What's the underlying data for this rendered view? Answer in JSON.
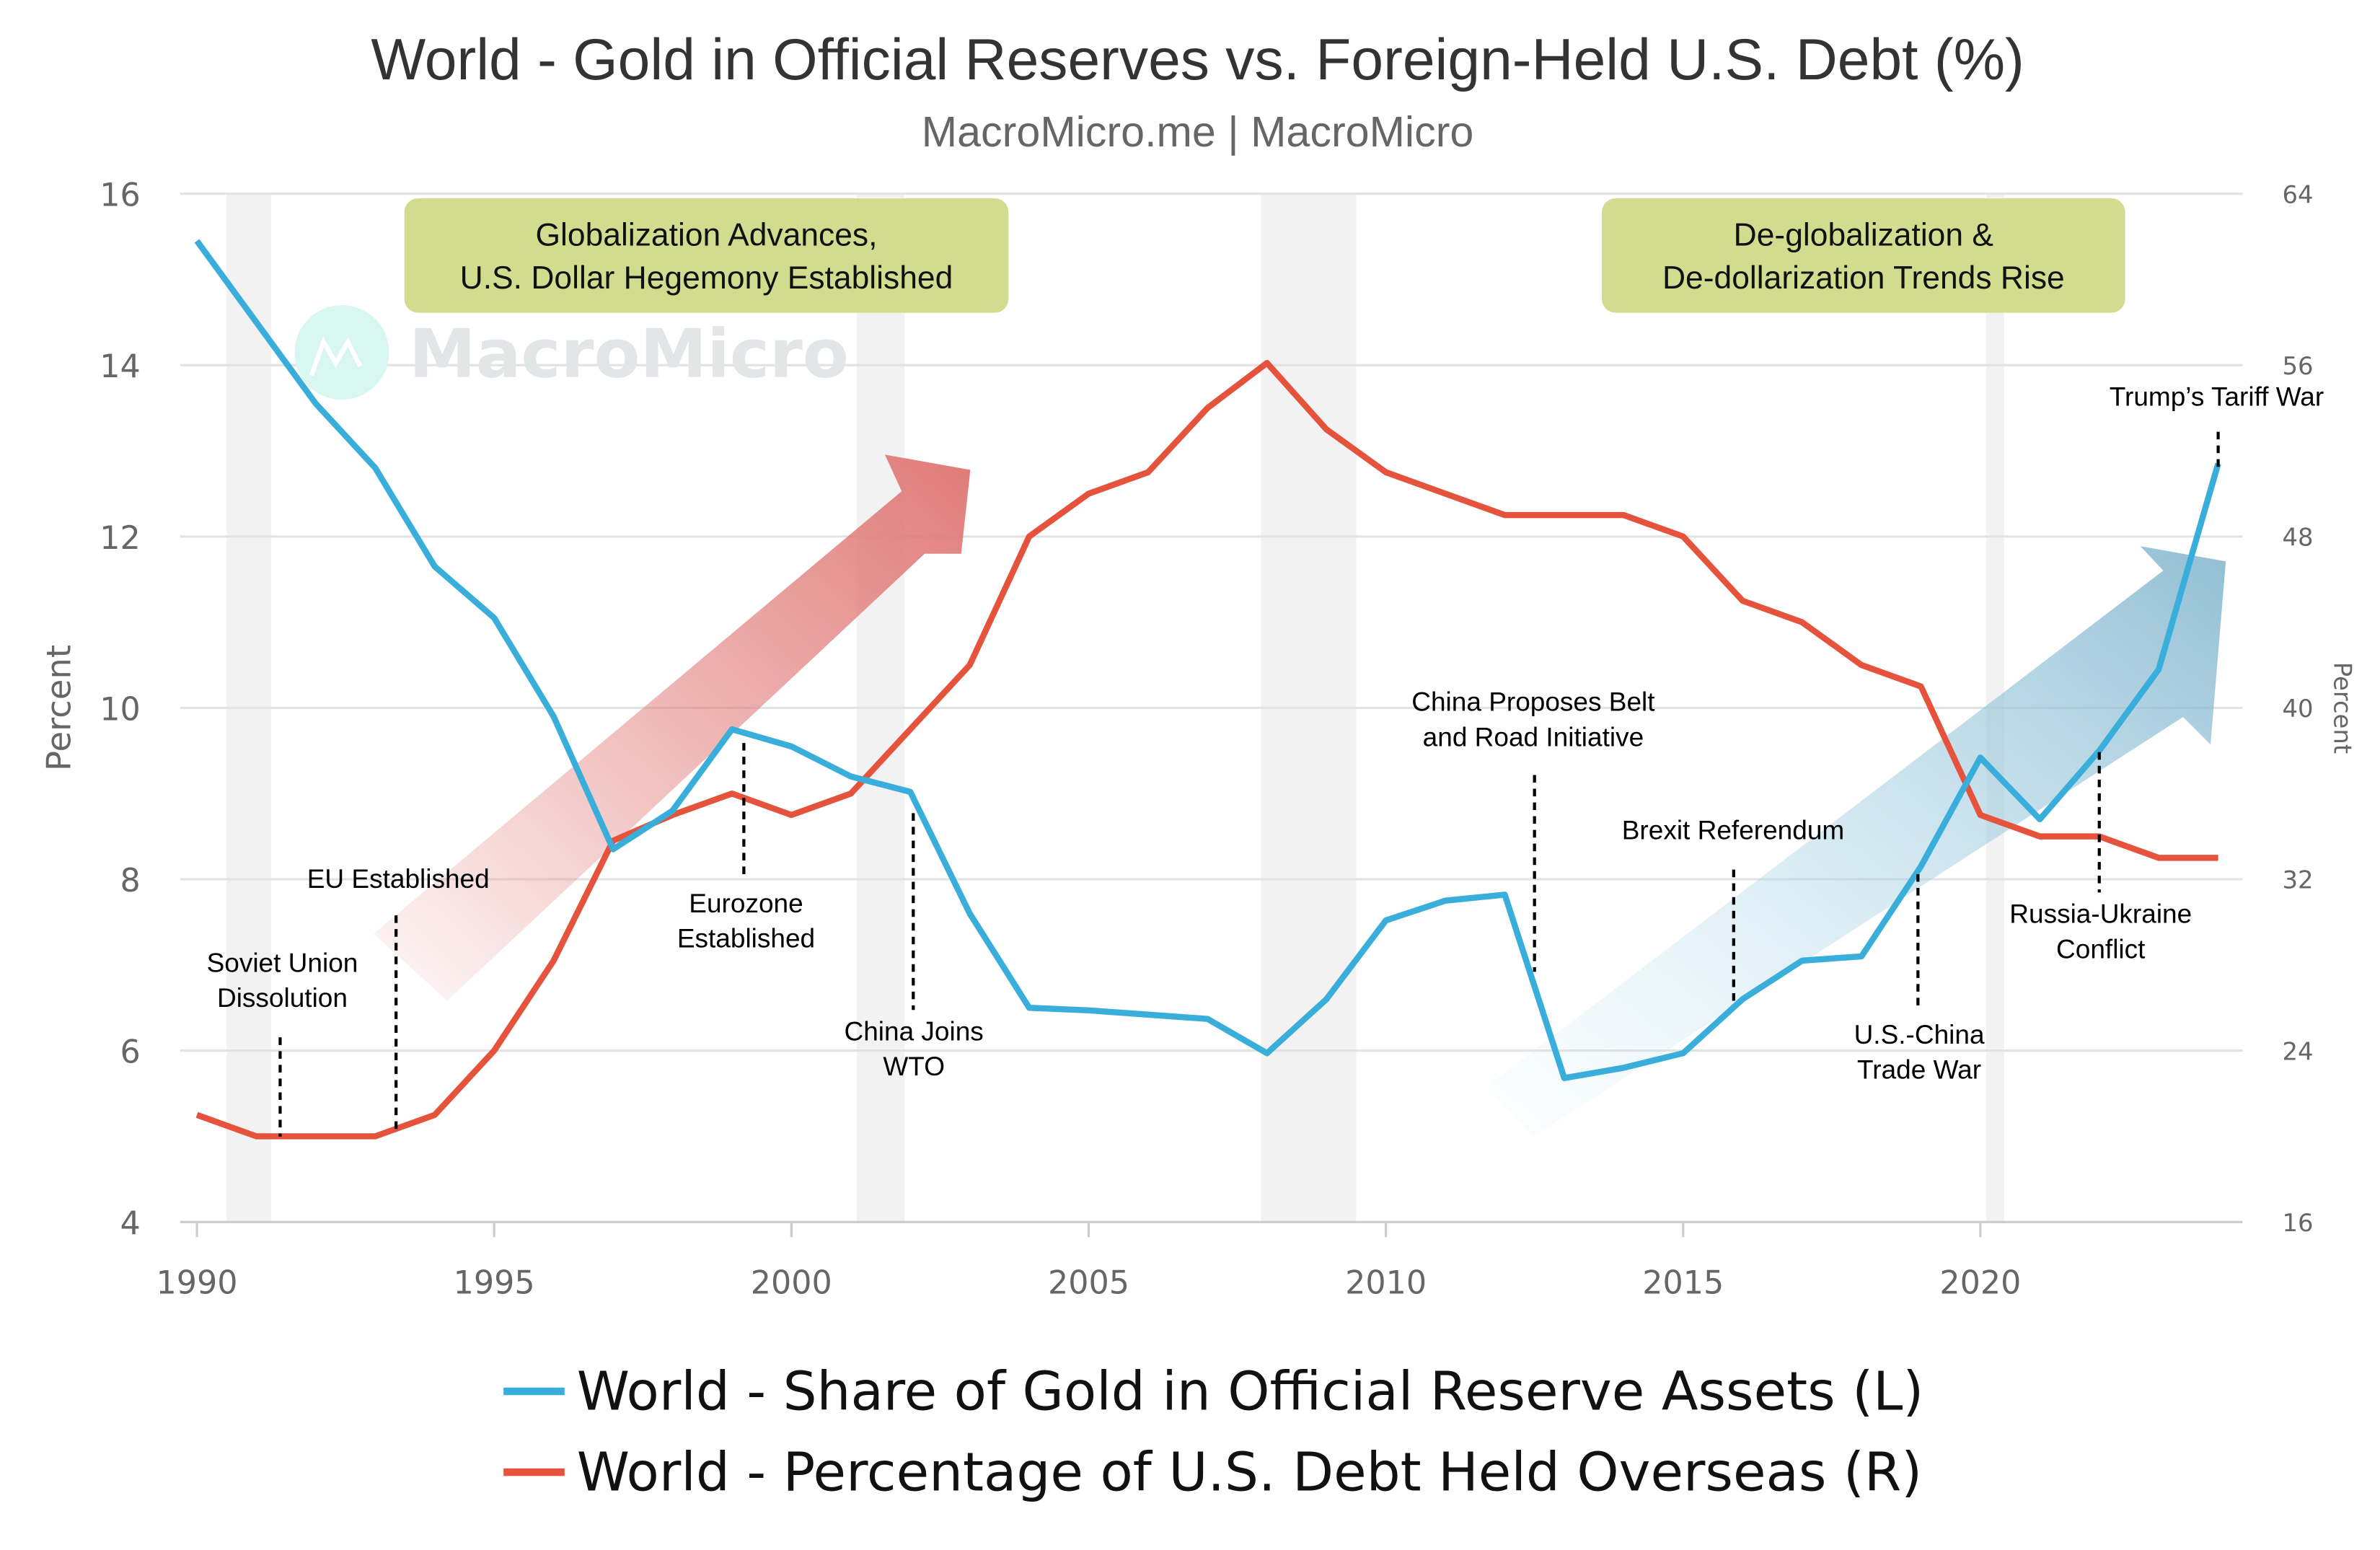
{
  "chart_data": {
    "type": "line",
    "title": "World - Gold in Official Reserves vs. Foreign-Held U.S. Debt (%)",
    "subtitle": "MacroMicro.me | MacroMicro",
    "watermark": "MacroMicro",
    "x": [
      1990,
      1991,
      1992,
      1993,
      1994,
      1995,
      1996,
      1997,
      1998,
      1999,
      2000,
      2001,
      2002,
      2003,
      2004,
      2005,
      2006,
      2007,
      2008,
      2009,
      2010,
      2011,
      2012,
      2013,
      2014,
      2015,
      2016,
      2017,
      2018,
      2019,
      2020,
      2021,
      2022,
      2023,
      2024
    ],
    "xlim": [
      1990,
      2024
    ],
    "x_ticks": [
      "1990",
      "1995",
      "2000",
      "2005",
      "2010",
      "2015",
      "2020"
    ],
    "ylabel_left": "Percent",
    "ylabel_right": "Percent",
    "ylim_left": [
      4,
      16
    ],
    "ylim_right": [
      16,
      64
    ],
    "y_ticks_left": [
      "4",
      "6",
      "8",
      "10",
      "12",
      "14",
      "16"
    ],
    "y_ticks_right": [
      "16",
      "24",
      "32",
      "40",
      "48",
      "56",
      "64"
    ],
    "grid": true,
    "legend_position": "bottom",
    "series": [
      {
        "name": "World - Share of Gold in Official Reserve Assets (L)",
        "axis": "left",
        "color": "#3aaedb",
        "values": [
          15.45,
          14.5,
          13.55,
          12.8,
          11.65,
          11.05,
          9.9,
          8.35,
          8.8,
          9.75,
          9.55,
          9.2,
          9.02,
          7.6,
          6.5,
          6.47,
          6.42,
          6.37,
          5.97,
          6.6,
          7.52,
          7.75,
          7.82,
          5.68,
          5.8,
          5.97,
          6.6,
          7.05,
          7.1,
          8.15,
          9.42,
          8.7,
          9.5,
          10.45,
          12.85
        ]
      },
      {
        "name": "World - Percentage of U.S. Debt Held Overseas (R)",
        "axis": "right",
        "color": "#e5533d",
        "values": [
          21,
          20,
          20,
          20,
          21,
          24,
          28.2,
          33.8,
          35,
          36,
          35,
          36,
          39,
          42,
          48,
          50,
          51,
          54,
          56.1,
          53,
          51,
          50,
          49,
          49,
          49,
          48,
          45,
          44,
          42,
          41,
          35,
          34,
          34,
          33,
          33
        ]
      }
    ],
    "shaded_periods": [
      [
        1990.5,
        1991.25
      ],
      [
        2001.1,
        2001.9
      ],
      [
        2007.9,
        2009.5
      ],
      [
        2020.1,
        2020.4
      ]
    ],
    "annotations": [
      {
        "lines": [
          "Soviet Union",
          "Dissolution"
        ],
        "year": 1991.4
      },
      {
        "lines": [
          "EU Established"
        ],
        "year": 1993.35
      },
      {
        "lines": [
          "Eurozone",
          "Established"
        ],
        "year": 1999.2
      },
      {
        "lines": [
          "China Joins",
          "WTO"
        ],
        "year": 2002.05
      },
      {
        "lines": [
          "China Proposes Belt",
          "and Road Initiative"
        ],
        "year": 2012.5
      },
      {
        "lines": [
          "Brexit Referendum"
        ],
        "year": 2015.85
      },
      {
        "lines": [
          "U.S.-China",
          "Trade War"
        ],
        "year": 2018.95
      },
      {
        "lines": [
          "Russia-Ukraine",
          "Conflict"
        ],
        "year": 2022
      },
      {
        "lines": [
          "Trump’s Tariff War"
        ],
        "year": 2024
      }
    ],
    "callouts": [
      {
        "lines": [
          "Globalization Advances,",
          "U.S. Dollar Hegemony Established"
        ],
        "background": "#d2dc8f"
      },
      {
        "lines": [
          "De-globalization &",
          "De-dollarization Trends Rise"
        ],
        "background": "#d2dc8f"
      }
    ],
    "trend_arrows": [
      {
        "direction": "up",
        "color": "#e07b78"
      },
      {
        "direction": "up",
        "color": "#7fb8d2"
      }
    ]
  }
}
